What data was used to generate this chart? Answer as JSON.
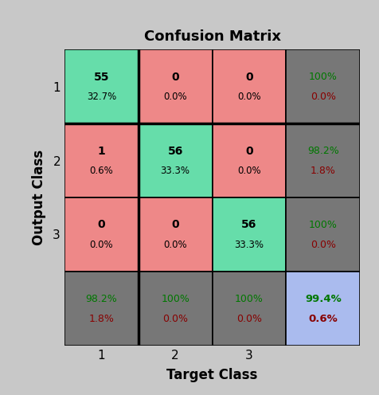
{
  "title": "Confusion Matrix",
  "xlabel": "Target Class",
  "ylabel": "Output Class",
  "matrix": [
    [
      55,
      0,
      0
    ],
    [
      1,
      56,
      0
    ],
    [
      0,
      0,
      56
    ]
  ],
  "matrix_pct": [
    [
      "32.7%",
      "0.0%",
      "0.0%"
    ],
    [
      "0.6%",
      "33.3%",
      "0.0%"
    ],
    [
      "0.0%",
      "0.0%",
      "33.3%"
    ]
  ],
  "row_summary": [
    [
      "100%",
      "0.0%"
    ],
    [
      "98.2%",
      "1.8%"
    ],
    [
      "100%",
      "0.0%"
    ]
  ],
  "col_summary": [
    [
      "98.2%",
      "1.8%"
    ],
    [
      "100%",
      "0.0%"
    ],
    [
      "100%",
      "0.0%"
    ]
  ],
  "overall_summary": [
    "99.4%",
    "0.6%"
  ],
  "cell_colors": {
    "diagonal": "#66DDAA",
    "off_diagonal": "#EE8888",
    "row_col_summary": "#777777",
    "overall_summary": "#AABBEE",
    "background": "#C8C8C8"
  },
  "text_colors": {
    "green": "#007700",
    "red": "#880000",
    "black": "#000000"
  },
  "tick_labels": [
    "1",
    "2",
    "3"
  ],
  "figsize": [
    4.76,
    4.96
  ],
  "dpi": 100
}
